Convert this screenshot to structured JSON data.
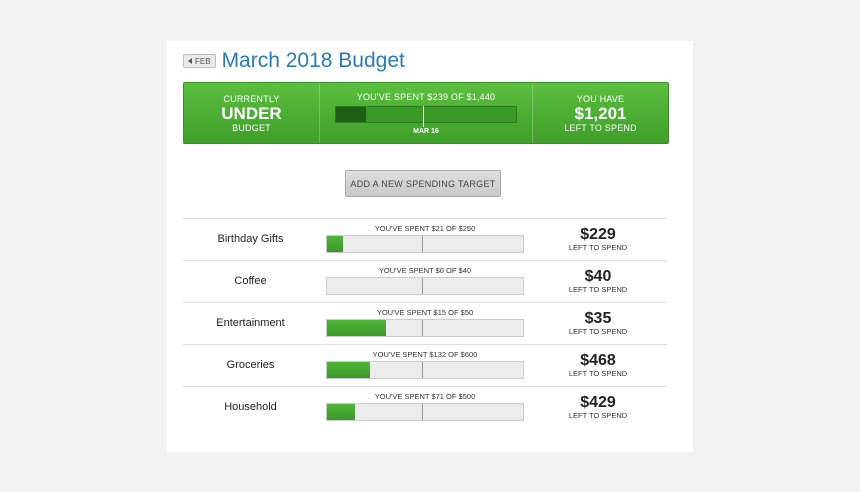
{
  "header": {
    "prev_label": "FEB",
    "title": "March 2018 Budget"
  },
  "summary": {
    "status_top": "CURRENTLY",
    "status_main": "UNDER",
    "status_bottom": "BUDGET",
    "spent_text": "YOU'VE SPENT $239 OF $1,440",
    "spent_fraction": 0.166,
    "today_fraction": 0.484,
    "today_label": "MAR 16",
    "remain_top": "YOU HAVE",
    "remain_amount": "$1,201",
    "remain_bottom": "LEFT TO SPEND"
  },
  "add_target_label": "ADD A NEW SPENDING TARGET",
  "today_fraction": 0.484,
  "categories": [
    {
      "name": "Birthday Gifts",
      "spent_text": "YOU'VE SPENT $21 OF $250",
      "fraction": 0.084,
      "left": "$229",
      "left_label": "LEFT TO SPEND"
    },
    {
      "name": "Coffee",
      "spent_text": "YOU'VE SPENT $0 OF $40",
      "fraction": 0.0,
      "left": "$40",
      "left_label": "LEFT TO SPEND"
    },
    {
      "name": "Entertainment",
      "spent_text": "YOU'VE SPENT $15 OF $50",
      "fraction": 0.3,
      "left": "$35",
      "left_label": "LEFT TO SPEND"
    },
    {
      "name": "Groceries",
      "spent_text": "YOU'VE SPENT $132 OF $600",
      "fraction": 0.22,
      "left": "$468",
      "left_label": "LEFT TO SPEND"
    },
    {
      "name": "Household",
      "spent_text": "YOU'VE SPENT $71 OF $500",
      "fraction": 0.142,
      "left": "$429",
      "left_label": "LEFT TO SPEND"
    }
  ],
  "colors": {
    "accent_green": "#4caf35",
    "title_blue": "#2a7ab7"
  }
}
